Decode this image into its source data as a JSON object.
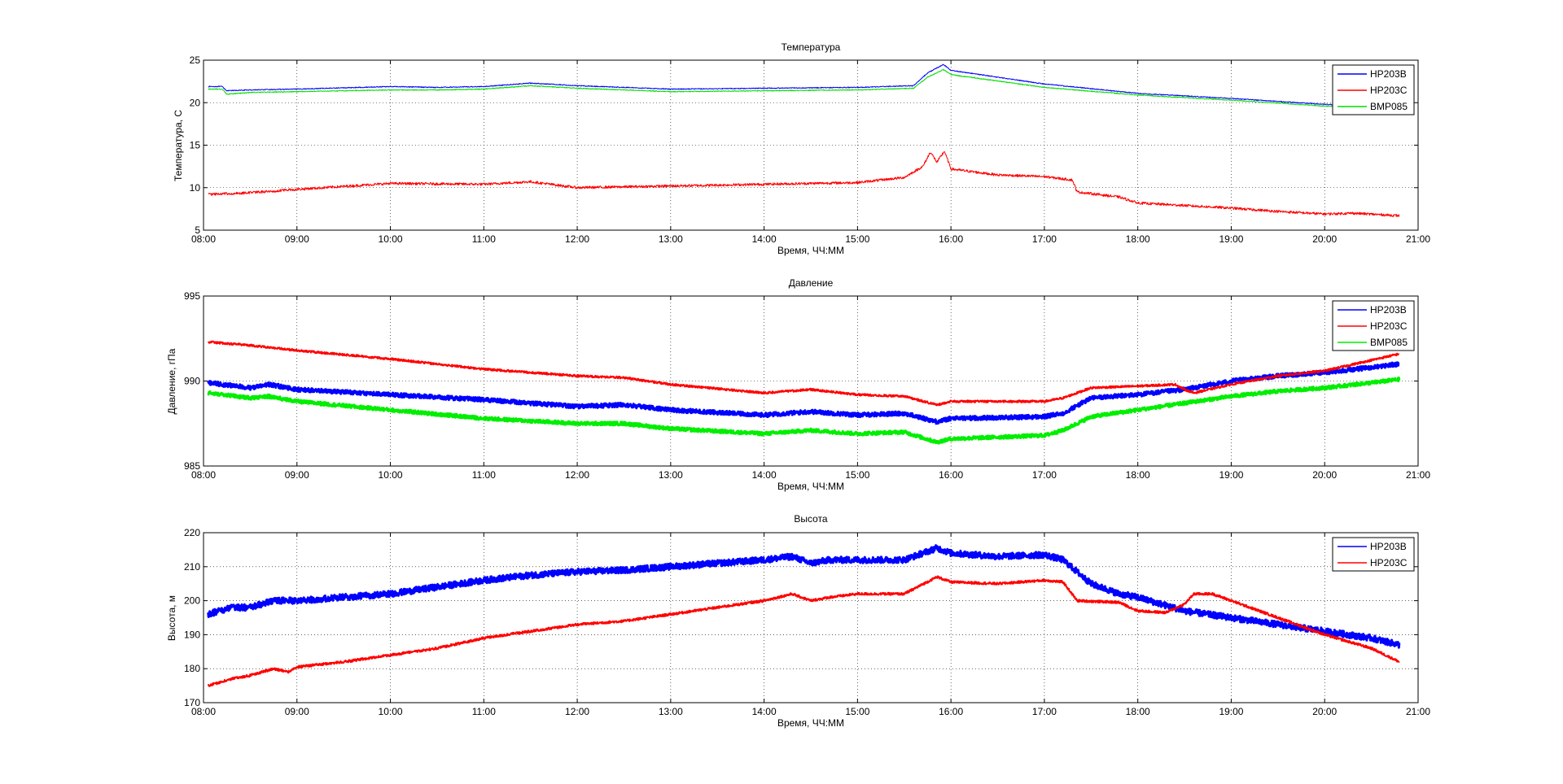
{
  "chart_data": [
    {
      "type": "line",
      "title": "Температура",
      "xlabel": "Время, ЧЧ:ММ",
      "ylabel": "Температура, С",
      "xlim": [
        8.0,
        21.0
      ],
      "ylim": [
        5,
        25
      ],
      "yticks": [
        5,
        10,
        15,
        20,
        25
      ],
      "xticks": [
        "08:00",
        "09:00",
        "10:00",
        "11:00",
        "12:00",
        "13:00",
        "14:00",
        "15:00",
        "16:00",
        "17:00",
        "18:00",
        "19:00",
        "20:00",
        "21:00"
      ],
      "grid": true,
      "legend_position": "top-right",
      "series": [
        {
          "name": "HP203B",
          "color": "#0000ff",
          "x": [
            8.05,
            8.2,
            8.25,
            8.5,
            9.0,
            10.0,
            10.5,
            11.0,
            11.5,
            12.0,
            12.5,
            13.0,
            14.0,
            15.0,
            15.6,
            15.75,
            15.92,
            16.0,
            17.0,
            18.0,
            19.0,
            20.0,
            20.3
          ],
          "y": [
            21.9,
            21.9,
            21.4,
            21.5,
            21.6,
            21.9,
            21.8,
            21.9,
            22.3,
            22.0,
            21.8,
            21.6,
            21.7,
            21.8,
            22.0,
            23.5,
            24.5,
            23.8,
            22.2,
            21.1,
            20.5,
            19.8,
            19.7
          ],
          "noise": 0.05
        },
        {
          "name": "HP203C",
          "color": "#ff0000",
          "x": [
            8.05,
            8.5,
            9.0,
            10.0,
            11.0,
            11.5,
            12.0,
            13.0,
            14.0,
            15.0,
            15.5,
            15.7,
            15.78,
            15.85,
            15.93,
            16.0,
            16.5,
            17.0,
            17.3,
            17.35,
            17.8,
            18.0,
            18.5,
            19.0,
            19.5,
            20.0,
            20.3,
            20.8
          ],
          "y": [
            9.2,
            9.4,
            9.8,
            10.5,
            10.4,
            10.7,
            10.0,
            10.2,
            10.4,
            10.6,
            11.2,
            12.5,
            14.2,
            13.0,
            14.3,
            12.2,
            11.5,
            11.3,
            10.9,
            9.5,
            8.9,
            8.2,
            7.9,
            7.6,
            7.2,
            6.9,
            7.0,
            6.7
          ],
          "noise": 0.15
        },
        {
          "name": "BMP085",
          "color": "#00dd00",
          "x": [
            8.05,
            8.2,
            8.25,
            8.5,
            9.0,
            10.0,
            10.5,
            11.0,
            11.5,
            12.0,
            12.5,
            13.0,
            14.0,
            15.0,
            15.6,
            15.75,
            15.92,
            16.0,
            17.0,
            18.0,
            19.0,
            20.0,
            20.3
          ],
          "y": [
            21.6,
            21.6,
            21.0,
            21.2,
            21.3,
            21.5,
            21.5,
            21.6,
            22.0,
            21.7,
            21.5,
            21.3,
            21.4,
            21.5,
            21.7,
            23.0,
            23.9,
            23.3,
            21.8,
            20.9,
            20.3,
            19.6,
            19.5
          ],
          "noise": 0.05
        }
      ]
    },
    {
      "type": "line",
      "title": "Давление",
      "xlabel": "Время, ЧЧ:ММ",
      "ylabel": "Давление, гПа",
      "xlim": [
        8.0,
        21.0
      ],
      "ylim": [
        985,
        995
      ],
      "yticks": [
        985,
        990,
        995
      ],
      "xticks": [
        "08:00",
        "09:00",
        "10:00",
        "11:00",
        "12:00",
        "13:00",
        "14:00",
        "15:00",
        "16:00",
        "17:00",
        "18:00",
        "19:00",
        "20:00",
        "21:00"
      ],
      "grid": true,
      "legend_position": "top-right",
      "series": [
        {
          "name": "HP203B",
          "color": "#0000ff",
          "x": [
            8.05,
            8.5,
            8.7,
            9.0,
            10.0,
            11.0,
            12.0,
            12.5,
            13.0,
            14.0,
            14.5,
            15.0,
            15.5,
            15.85,
            16.0,
            17.0,
            17.2,
            17.5,
            18.0,
            18.5,
            19.0,
            19.5,
            20.0,
            20.5,
            20.8
          ],
          "y": [
            989.9,
            989.6,
            989.8,
            989.5,
            989.2,
            988.9,
            988.5,
            988.6,
            988.3,
            988.0,
            988.2,
            988.0,
            988.1,
            987.6,
            987.8,
            987.9,
            988.1,
            989.0,
            989.2,
            989.5,
            990.0,
            990.3,
            990.5,
            990.8,
            991.0
          ],
          "noise": 0.12,
          "width": 3
        },
        {
          "name": "HP203C",
          "color": "#ff0000",
          "x": [
            8.05,
            8.5,
            9.0,
            10.0,
            11.0,
            12.0,
            12.5,
            13.0,
            14.0,
            14.5,
            15.0,
            15.5,
            15.85,
            16.0,
            17.0,
            17.2,
            17.5,
            18.0,
            18.4,
            18.5,
            18.6,
            19.0,
            19.5,
            20.0,
            20.8
          ],
          "y": [
            992.3,
            992.1,
            991.8,
            991.3,
            990.7,
            990.3,
            990.2,
            989.8,
            989.3,
            989.5,
            989.2,
            989.1,
            988.6,
            988.8,
            988.8,
            989.0,
            989.6,
            989.7,
            989.8,
            989.5,
            989.3,
            989.8,
            990.3,
            990.6,
            991.6
          ],
          "noise": 0.06,
          "width": 2
        },
        {
          "name": "BMP085",
          "color": "#00ee00",
          "x": [
            8.05,
            8.5,
            8.7,
            9.0,
            10.0,
            11.0,
            12.0,
            12.5,
            13.0,
            14.0,
            14.5,
            15.0,
            15.5,
            15.85,
            16.0,
            17.0,
            17.2,
            17.5,
            18.0,
            18.5,
            19.0,
            19.5,
            20.0,
            20.5,
            20.8
          ],
          "y": [
            989.3,
            989.0,
            989.1,
            988.8,
            988.3,
            987.8,
            987.5,
            987.5,
            987.2,
            986.9,
            987.1,
            986.9,
            987.0,
            986.4,
            986.6,
            986.8,
            987.1,
            987.9,
            988.3,
            988.7,
            989.1,
            989.4,
            989.6,
            989.9,
            990.1
          ],
          "noise": 0.1,
          "width": 3
        }
      ]
    },
    {
      "type": "line",
      "title": "Высота",
      "xlabel": "Время, ЧЧ:ММ",
      "ylabel": "Высота, м",
      "xlim": [
        8.0,
        21.0
      ],
      "ylim": [
        170,
        220
      ],
      "yticks": [
        170,
        180,
        190,
        200,
        210,
        220
      ],
      "xticks": [
        "08:00",
        "09:00",
        "10:00",
        "11:00",
        "12:00",
        "13:00",
        "14:00",
        "15:00",
        "16:00",
        "17:00",
        "18:00",
        "19:00",
        "20:00",
        "21:00"
      ],
      "grid": true,
      "legend_position": "top-right",
      "series": [
        {
          "name": "HP203B",
          "color": "#0000ff",
          "x": [
            8.05,
            8.3,
            8.5,
            8.75,
            9.0,
            9.5,
            10.0,
            10.5,
            11.0,
            11.5,
            12.0,
            12.5,
            13.0,
            13.5,
            14.0,
            14.3,
            14.5,
            14.7,
            15.0,
            15.5,
            15.85,
            16.0,
            16.5,
            17.0,
            17.2,
            17.5,
            17.8,
            18.0,
            18.5,
            19.0,
            19.5,
            20.0,
            20.5,
            20.8
          ],
          "y": [
            196,
            198,
            198,
            200,
            200,
            201,
            202,
            204,
            206,
            207.5,
            208.5,
            209,
            210,
            211,
            212,
            213,
            211,
            212,
            212,
            212,
            215.5,
            214,
            213,
            213.5,
            212,
            205,
            202,
            201,
            197,
            195,
            193,
            191,
            189,
            187
          ],
          "noise": 0.9,
          "width": 3
        },
        {
          "name": "HP203C",
          "color": "#ff0000",
          "x": [
            8.05,
            8.3,
            8.5,
            8.75,
            8.9,
            9.0,
            9.5,
            10.0,
            10.5,
            11.0,
            11.5,
            12.0,
            12.5,
            13.0,
            13.5,
            14.0,
            14.3,
            14.5,
            14.7,
            15.0,
            15.5,
            15.85,
            16.0,
            16.5,
            17.0,
            17.2,
            17.35,
            17.8,
            18.0,
            18.3,
            18.5,
            18.6,
            18.8,
            19.0,
            19.5,
            20.0,
            20.5,
            20.8
          ],
          "y": [
            175,
            177,
            178,
            180,
            179,
            180.5,
            182,
            184,
            186,
            189,
            191,
            193,
            194,
            196,
            198,
            200,
            202,
            200,
            201,
            202,
            202,
            207,
            205.5,
            205,
            206,
            205.5,
            200,
            199.5,
            197,
            196.5,
            199,
            202,
            202,
            200,
            195,
            190,
            186,
            182
          ],
          "noise": 0.35,
          "width": 2
        }
      ]
    }
  ]
}
